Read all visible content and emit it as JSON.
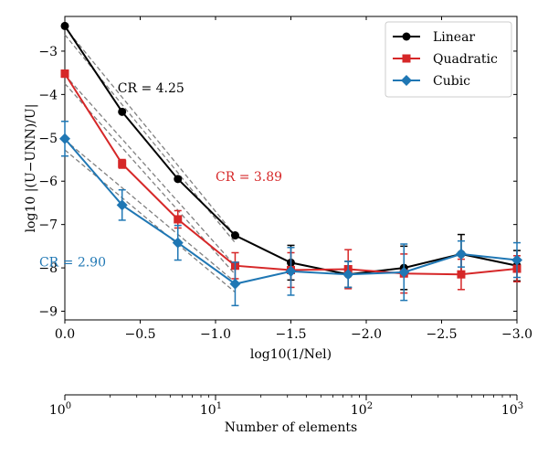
{
  "chart_data": [
    {
      "type": "line",
      "xlabel": "log10(1/Nel)",
      "ylabel": "log10 |(U−UNN)/U|",
      "xlim": [
        0.0,
        -3.0
      ],
      "ylim": [
        -9.2,
        -2.2
      ],
      "x_ticks": [
        0.0,
        -0.5,
        -1.0,
        -1.5,
        -2.0,
        -2.5,
        -3.0
      ],
      "x_tick_labels": [
        "0.0",
        "−0.5",
        "−1.0",
        "−1.5",
        "−2.0",
        "−2.5",
        "−3.0"
      ],
      "y_ticks": [
        -3,
        -4,
        -5,
        -6,
        -7,
        -8,
        -9
      ],
      "y_tick_labels": [
        "−3",
        "−4",
        "−5",
        "−6",
        "−7",
        "−8",
        "−9"
      ],
      "x": [
        0.0,
        -0.38,
        -0.75,
        -1.13,
        -1.5,
        -1.88,
        -2.25,
        -2.63,
        -3.0
      ],
      "series": [
        {
          "name": "Linear",
          "color": "#000000",
          "marker": "circle",
          "values": [
            -2.42,
            -4.4,
            -5.95,
            -7.25,
            -7.88,
            -8.15,
            -8.0,
            -7.68,
            -7.95
          ],
          "errors": [
            0.05,
            0.05,
            0.05,
            0.05,
            0.4,
            0.3,
            0.5,
            0.45,
            0.35
          ]
        },
        {
          "name": "Quadratic",
          "color": "#d62728",
          "marker": "square",
          "values": [
            -3.52,
            -5.6,
            -6.88,
            -7.95,
            -8.05,
            -8.03,
            -8.13,
            -8.15,
            -8.02
          ],
          "errors": [
            0.08,
            0.1,
            0.2,
            0.3,
            0.4,
            0.45,
            0.45,
            0.35,
            0.3
          ]
        },
        {
          "name": "Cubic",
          "color": "#1f77b4",
          "marker": "diamond",
          "values": [
            -5.02,
            -6.55,
            -7.42,
            -8.37,
            -8.08,
            -8.15,
            -8.1,
            -7.68,
            -7.82
          ],
          "errors": [
            0.4,
            0.35,
            0.4,
            0.5,
            0.55,
            0.3,
            0.65,
            0.3,
            0.4
          ]
        }
      ],
      "fit_lines": [
        {
          "series": "Linear",
          "label": "CR = 4.25",
          "x": [
            0.0,
            -1.13
          ],
          "y": [
            -2.45,
            -7.25
          ]
        },
        {
          "series": "Linear",
          "label": "",
          "x": [
            0.0,
            -1.13
          ],
          "y": [
            -2.62,
            -7.42
          ]
        },
        {
          "series": "Quadratic",
          "label": "CR = 3.89",
          "x": [
            0.0,
            -1.13
          ],
          "y": [
            -3.55,
            -7.95
          ]
        },
        {
          "series": "Quadratic",
          "label": "",
          "x": [
            0.0,
            -1.13
          ],
          "y": [
            -3.75,
            -8.15
          ]
        },
        {
          "series": "Cubic",
          "label": "CR = 2.90",
          "x": [
            0.0,
            -1.13
          ],
          "y": [
            -5.05,
            -8.33
          ]
        },
        {
          "series": "Cubic",
          "label": "",
          "x": [
            0.0,
            -1.13
          ],
          "y": [
            -5.28,
            -8.56
          ]
        }
      ],
      "annotations": [
        {
          "text": "CR = 4.25",
          "color": "#000000",
          "x": -0.35,
          "y": -3.95
        },
        {
          "text": "CR = 3.89",
          "color": "#d62728",
          "x": -1.0,
          "y": -6.0
        },
        {
          "text": "CR = 2.90",
          "color": "#1f77b4",
          "x": 0.17,
          "y": -7.97
        }
      ],
      "legend": {
        "position": "top-right",
        "entries": [
          "Linear",
          "Quadratic",
          "Cubic"
        ]
      }
    },
    {
      "type": "axis",
      "scale": "log",
      "xlabel": "Number of elements",
      "xlim": [
        1,
        1000
      ],
      "x_ticks": [
        1,
        10,
        100,
        1000
      ],
      "x_tick_labels": [
        {
          "base": "10",
          "exp": "0"
        },
        {
          "base": "10",
          "exp": "1"
        },
        {
          "base": "10",
          "exp": "2"
        },
        {
          "base": "10",
          "exp": "3"
        }
      ]
    }
  ]
}
